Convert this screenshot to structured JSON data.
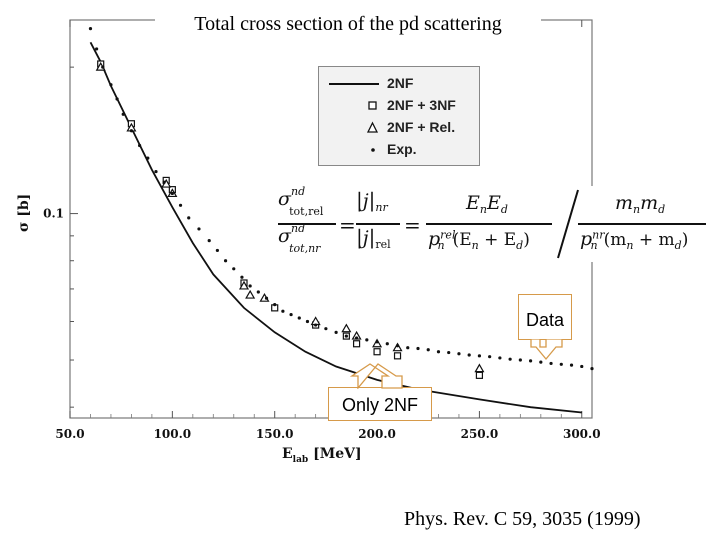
{
  "page_title": "Total cross section of the pd scattering",
  "citation": "Phys. Rev. C 59, 3035 (1999)",
  "callouts": {
    "data": "Data",
    "only2nf": "Only 2NF"
  },
  "formula": {
    "sigma": "σ",
    "sup_nd": "nd",
    "sub_top": "tot,rel",
    "sub_bottom": "tot,nr",
    "equals": "=",
    "j": "j",
    "sub_nr": "nr",
    "sub_rel": "rel",
    "num1": "E",
    "num1_sub_a": "n",
    "num1_b": "E",
    "num1_sub_b": "d",
    "den1": "p",
    "den1_sup": "rel",
    "den1_sub": "n",
    "den1_rest": "(E",
    "den1_rest_sub_a": "n",
    "den1_plus": " + E",
    "den1_rest_sub_b": "d",
    "den1_close": ")",
    "num2": "m",
    "num2_sub_a": "n",
    "num2_b": "m",
    "num2_sub_b": "d",
    "den2": "p",
    "den2_sup": "nr",
    "den2_sub": "n",
    "den2_rest": "(m",
    "den2_rest_sub_a": "n",
    "den2_plus": " + m",
    "den2_rest_sub_b": "d",
    "den2_close": ")"
  },
  "chart_data": {
    "type": "line",
    "title": "Total cross section of the pd scattering",
    "xlabel": "E_lab [MeV]",
    "xlabel_main": "E",
    "xlabel_sub": "lab",
    "xlabel_unit": "[MeV]",
    "ylabel": "σ [b]",
    "xlim": [
      50,
      305
    ],
    "ylim_log": [
      0.038,
      0.25
    ],
    "yscale": "log",
    "x_ticks": [
      50,
      100,
      150,
      200,
      250,
      300
    ],
    "x_tick_labels": [
      "50.0",
      "100.0",
      "150.0",
      "200.0",
      "250.0",
      "300.0"
    ],
    "y_ticks": [
      0.1
    ],
    "y_tick_labels": [
      "0.1"
    ],
    "legend": {
      "position": "top-right",
      "entries": [
        {
          "label": "2NF",
          "symbol": "line"
        },
        {
          "label": "2NF + 3NF",
          "symbol": "square"
        },
        {
          "label": "2NF + Rel.",
          "symbol": "triangle"
        },
        {
          "label": "Exp.",
          "symbol": "dot"
        }
      ]
    },
    "series": [
      {
        "name": "2NF",
        "symbol": "line",
        "x": [
          60,
          65,
          70,
          80,
          90,
          100,
          110,
          120,
          135,
          150,
          165,
          180,
          200,
          220,
          250,
          275,
          300
        ],
        "y": [
          0.225,
          0.205,
          0.183,
          0.15,
          0.123,
          0.103,
          0.087,
          0.075,
          0.064,
          0.057,
          0.052,
          0.0485,
          0.0455,
          0.0435,
          0.0415,
          0.04,
          0.039
        ]
      },
      {
        "name": "2NF + 3NF",
        "symbol": "square",
        "x": [
          65,
          80,
          97,
          100,
          135,
          150,
          170,
          185,
          190,
          200,
          210,
          250
        ],
        "y": [
          0.203,
          0.153,
          0.117,
          0.112,
          0.072,
          0.064,
          0.059,
          0.056,
          0.054,
          0.052,
          0.051,
          0.0465
        ]
      },
      {
        "name": "2NF + Rel.",
        "symbol": "triangle",
        "x": [
          65,
          80,
          97,
          100,
          135,
          138,
          145,
          170,
          185,
          190,
          200,
          210,
          250
        ],
        "y": [
          0.2,
          0.15,
          0.115,
          0.11,
          0.071,
          0.068,
          0.067,
          0.06,
          0.058,
          0.056,
          0.054,
          0.053,
          0.048
        ]
      },
      {
        "name": "Exp.",
        "symbol": "dot",
        "x": [
          60,
          63,
          66,
          70,
          73,
          76,
          80,
          84,
          88,
          92,
          96,
          100,
          104,
          108,
          113,
          118,
          122,
          126,
          130,
          134,
          138,
          142,
          146,
          150,
          154,
          158,
          162,
          166,
          170,
          175,
          180,
          185,
          190,
          195,
          200,
          205,
          210,
          215,
          220,
          225,
          230,
          235,
          240,
          245,
          250,
          255,
          260,
          265,
          270,
          275,
          280,
          285,
          290,
          295,
          300,
          305
        ],
        "y": [
          0.24,
          0.218,
          0.2,
          0.184,
          0.172,
          0.16,
          0.148,
          0.138,
          0.13,
          0.122,
          0.116,
          0.11,
          0.104,
          0.098,
          0.093,
          0.088,
          0.084,
          0.08,
          0.077,
          0.074,
          0.071,
          0.069,
          0.067,
          0.065,
          0.063,
          0.062,
          0.061,
          0.06,
          0.059,
          0.058,
          0.057,
          0.056,
          0.0555,
          0.055,
          0.0545,
          0.054,
          0.0535,
          0.053,
          0.0528,
          0.0525,
          0.052,
          0.0518,
          0.0515,
          0.0512,
          0.051,
          0.0508,
          0.0505,
          0.0502,
          0.05,
          0.0498,
          0.0495,
          0.0492,
          0.049,
          0.0488,
          0.0485,
          0.048
        ]
      }
    ]
  }
}
